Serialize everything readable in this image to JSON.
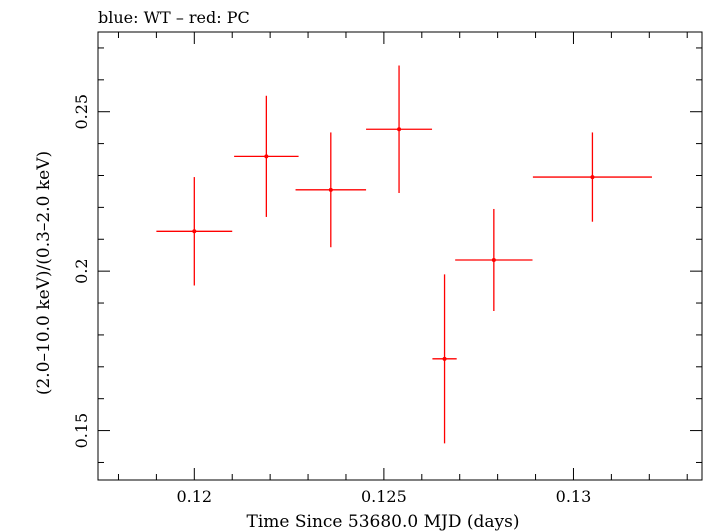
{
  "chart_data": {
    "type": "scatter",
    "title": "blue: WT – red: PC",
    "xlabel": "Time Since 53680.0 MJD (days)",
    "ylabel": "(2.0–10.0 keV)/(0.3–2.0 keV)",
    "xlim": [
      0.11746,
      0.13339
    ],
    "ylim": [
      0.1345,
      0.275
    ],
    "x_ticks": [
      0.12,
      0.125,
      0.13
    ],
    "x_tick_labels": [
      "0.12",
      "0.125",
      "0.13"
    ],
    "y_ticks": [
      0.15,
      0.2,
      0.25
    ],
    "y_tick_labels": [
      "0.15",
      "0.2",
      "0.25"
    ],
    "grid": false,
    "series": [
      {
        "color": "#ff0000",
        "points": [
          {
            "x": 0.12,
            "xerr": 0.001,
            "y": 0.2125,
            "yerr_low": 0.017,
            "yerr_high": 0.017
          },
          {
            "x": 0.1219,
            "xerr": 0.00085,
            "y": 0.236,
            "yerr_low": 0.019,
            "yerr_high": 0.019
          },
          {
            "x": 0.1236,
            "xerr": 0.00093,
            "y": 0.2255,
            "yerr_low": 0.018,
            "yerr_high": 0.018
          },
          {
            "x": 0.1254,
            "xerr": 0.00087,
            "y": 0.2445,
            "yerr_low": 0.02,
            "yerr_high": 0.02
          },
          {
            "x": 0.1266,
            "xerr": 0.00032,
            "y": 0.1725,
            "yerr_low": 0.0265,
            "yerr_high": 0.0265
          },
          {
            "x": 0.1279,
            "xerr": 0.00102,
            "y": 0.2035,
            "yerr_low": 0.016,
            "yerr_high": 0.016
          },
          {
            "x": 0.1305,
            "xerr": 0.00157,
            "y": 0.2295,
            "yerr_low": 0.014,
            "yerr_high": 0.014
          }
        ]
      }
    ]
  }
}
